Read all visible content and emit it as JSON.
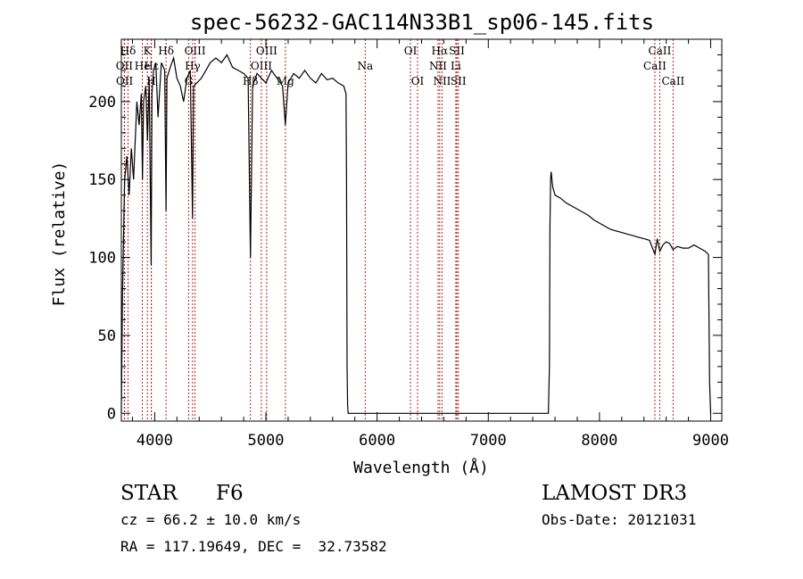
{
  "chart_data": {
    "type": "line",
    "title": "spec-56232-GAC114N33B1_sp06-145.fits",
    "xlabel": "Wavelength (Å)",
    "ylabel": "Flux (relative)",
    "xlim": [
      3700,
      9100
    ],
    "ylim": [
      -5,
      240
    ],
    "xticks": [
      4000,
      5000,
      6000,
      7000,
      8000,
      9000
    ],
    "xtick_labels": [
      "4000",
      "5000",
      "6000",
      "7000",
      "8000",
      "9000"
    ],
    "yticks": [
      0,
      50,
      100,
      150,
      200
    ],
    "ytick_labels": [
      "0",
      "50",
      "100",
      "150",
      "200"
    ],
    "grid": false,
    "series": [
      {
        "name": "spectrum",
        "x": [
          3700,
          3710,
          3730,
          3750,
          3770,
          3790,
          3810,
          3840,
          3860,
          3880,
          3890,
          3900,
          3920,
          3935,
          3950,
          3968,
          3975,
          3990,
          4010,
          4030,
          4060,
          4090,
          4102,
          4110,
          4140,
          4170,
          4200,
          4230,
          4260,
          4290,
          4320,
          4340,
          4350,
          4380,
          4420,
          4460,
          4500,
          4550,
          4600,
          4650,
          4700,
          4750,
          4800,
          4840,
          4861,
          4880,
          4920,
          4960,
          5000,
          5050,
          5100,
          5150,
          5175,
          5200,
          5250,
          5300,
          5350,
          5400,
          5450,
          5500,
          5550,
          5600,
          5650,
          5700,
          5720,
          5725,
          5730,
          5735,
          5740,
          5745,
          5800,
          6000,
          6500,
          7000,
          7150,
          7300,
          7450,
          7540,
          7550,
          7555,
          7560,
          7565,
          7570,
          7575,
          7580,
          7600,
          7650,
          7700,
          7750,
          7800,
          7850,
          7900,
          7950,
          8000,
          8050,
          8100,
          8150,
          8200,
          8250,
          8300,
          8350,
          8400,
          8450,
          8498,
          8520,
          8542,
          8570,
          8600,
          8630,
          8662,
          8700,
          8750,
          8800,
          8850,
          8900,
          8950,
          8980,
          8990,
          9000
        ],
        "y": [
          0,
          75,
          150,
          165,
          140,
          170,
          150,
          200,
          185,
          205,
          150,
          200,
          210,
          175,
          215,
          95,
          205,
          220,
          225,
          190,
          225,
          220,
          130,
          215,
          222,
          228,
          215,
          210,
          200,
          215,
          220,
          125,
          210,
          212,
          215,
          220,
          225,
          228,
          225,
          230,
          222,
          220,
          218,
          215,
          100,
          210,
          218,
          215,
          212,
          220,
          215,
          210,
          185,
          212,
          218,
          215,
          220,
          215,
          212,
          218,
          214,
          215,
          212,
          210,
          205,
          150,
          30,
          5,
          0,
          0,
          0,
          0,
          0,
          0,
          0,
          0,
          0,
          0,
          30,
          120,
          150,
          155,
          152,
          148,
          145,
          140,
          138,
          135,
          133,
          131,
          129,
          127,
          124,
          122,
          120,
          118,
          117,
          116,
          115,
          114,
          113,
          112,
          111,
          102,
          112,
          104,
          108,
          110,
          109,
          105,
          107,
          106,
          106,
          108,
          106,
          104,
          102,
          20,
          0
        ]
      }
    ],
    "line_markers": [
      {
        "label": "Hδ",
        "x": 3760,
        "row": 1
      },
      {
        "label": "OII",
        "x": 3727,
        "row": 2
      },
      {
        "label": "OII",
        "x": 3729,
        "row": 3
      },
      {
        "label": "K",
        "x": 3934,
        "row": 1
      },
      {
        "label": "H",
        "x": 3969,
        "row": 3
      },
      {
        "label": "He",
        "x": 3889,
        "row": 2
      },
      {
        "label": "Hε",
        "x": 3970,
        "row": 2
      },
      {
        "label": "Hδ",
        "x": 4102,
        "row": 1
      },
      {
        "label": "G",
        "x": 4305,
        "row": 3
      },
      {
        "label": "OIII",
        "x": 4363,
        "row": 1
      },
      {
        "label": "Hγ",
        "x": 4341,
        "row": 2
      },
      {
        "label": "Hβ",
        "x": 4861,
        "row": 3
      },
      {
        "label": "OIII",
        "x": 5007,
        "row": 1
      },
      {
        "label": "OIII",
        "x": 4959,
        "row": 2
      },
      {
        "label": "Mg",
        "x": 5175,
        "row": 3
      },
      {
        "label": "Na",
        "x": 5893,
        "row": 2
      },
      {
        "label": "OI",
        "x": 6300,
        "row": 1
      },
      {
        "label": "OI",
        "x": 6364,
        "row": 3
      },
      {
        "label": "Hα",
        "x": 6563,
        "row": 1
      },
      {
        "label": "NII",
        "x": 6548,
        "row": 2
      },
      {
        "label": "NII",
        "x": 6584,
        "row": 3
      },
      {
        "label": "SII",
        "x": 6717,
        "row": 1
      },
      {
        "label": "Li",
        "x": 6708,
        "row": 2
      },
      {
        "label": "SII",
        "x": 6731,
        "row": 3
      },
      {
        "label": "CaII",
        "x": 8542,
        "row": 1
      },
      {
        "label": "CaII",
        "x": 8498,
        "row": 2
      },
      {
        "label": "CaII",
        "x": 8662,
        "row": 3
      }
    ]
  },
  "info": {
    "object_class": "STAR",
    "subclass": "F6",
    "survey": "LAMOST DR3",
    "cz": "cz = 66.2 ± 10.0 km/s",
    "obs_date": "Obs-Date: 20121031",
    "coords": "RA = 117.19649, DEC =  32.73582"
  },
  "colors": {
    "line": "#000000",
    "marker": "#b22222",
    "background": "#ffffff"
  }
}
